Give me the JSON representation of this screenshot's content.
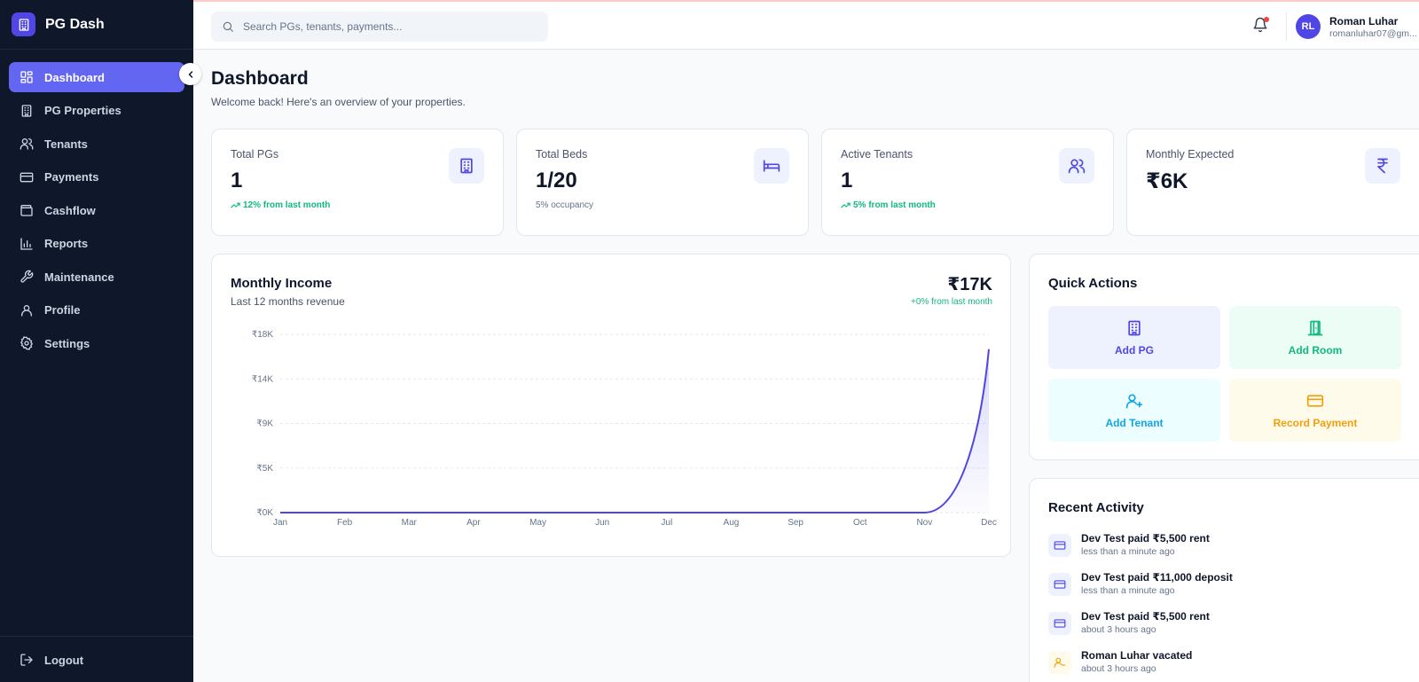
{
  "app": {
    "name": "PG Dash"
  },
  "sidebar": {
    "items": [
      {
        "label": "Dashboard",
        "icon": "dashboard-icon",
        "active": true
      },
      {
        "label": "PG Properties",
        "icon": "building-icon"
      },
      {
        "label": "Tenants",
        "icon": "users-icon"
      },
      {
        "label": "Payments",
        "icon": "credit-card-icon"
      },
      {
        "label": "Cashflow",
        "icon": "wallet-icon"
      },
      {
        "label": "Reports",
        "icon": "bar-chart-icon"
      },
      {
        "label": "Maintenance",
        "icon": "wrench-icon"
      },
      {
        "label": "Profile",
        "icon": "user-icon"
      },
      {
        "label": "Settings",
        "icon": "gear-icon"
      }
    ],
    "logout_label": "Logout"
  },
  "header": {
    "search_placeholder": "Search PGs, tenants, payments...",
    "user": {
      "initials": "RL",
      "name": "Roman Luhar",
      "email": "romanluhar07@gm..."
    }
  },
  "page": {
    "title": "Dashboard",
    "subtitle": "Welcome back! Here's an overview of your properties."
  },
  "stats": [
    {
      "label": "Total PGs",
      "value": "1",
      "note": "12% from last month",
      "note_trend": "up",
      "icon": "building-icon"
    },
    {
      "label": "Total Beds",
      "value": "1/20",
      "note": "5% occupancy",
      "note_trend": "neutral",
      "icon": "bed-icon"
    },
    {
      "label": "Active Tenants",
      "value": "1",
      "note": "5% from last month",
      "note_trend": "up",
      "icon": "users-icon"
    },
    {
      "label": "Monthly Expected",
      "value": "₹6K",
      "note": "",
      "note_trend": "none",
      "icon": "rupee-icon"
    }
  ],
  "income": {
    "title": "Monthly Income",
    "subtitle": "Last 12 months revenue",
    "total": "₹17K",
    "change": "+0% from last month"
  },
  "chart_data": {
    "type": "area",
    "x": [
      "Jan",
      "Feb",
      "Mar",
      "Apr",
      "May",
      "Jun",
      "Jul",
      "Aug",
      "Sep",
      "Oct",
      "Nov",
      "Dec"
    ],
    "series": [
      {
        "values": [
          0,
          0,
          0,
          0,
          0,
          0,
          0,
          0,
          0,
          0,
          0,
          16500
        ]
      }
    ],
    "y_ticks": [
      "₹0K",
      "₹5K",
      "₹9K",
      "₹14K",
      "₹18K"
    ],
    "y_tick_values": [
      0,
      4500,
      9000,
      13500,
      18000
    ],
    "ylim": [
      0,
      18000
    ],
    "grid": true,
    "line_color": "#4f46e5"
  },
  "quick_actions": {
    "title": "Quick Actions",
    "buttons": [
      {
        "label": "Add PG",
        "icon": "building-icon",
        "bg": "#eef2ff",
        "color": "#4f46e5"
      },
      {
        "label": "Add Room",
        "icon": "door-icon",
        "bg": "#ecfdf5",
        "color": "#10b981"
      },
      {
        "label": "Add Tenant",
        "icon": "user-plus-icon",
        "bg": "#ecfeff",
        "color": "#0ea5e9"
      },
      {
        "label": "Record Payment",
        "icon": "credit-card-icon",
        "bg": "#fffbeb",
        "color": "#f59e0b"
      }
    ]
  },
  "recent_activity": {
    "title": "Recent Activity",
    "items": [
      {
        "text": "Dev Test paid ₹5,500 rent",
        "time": "less than a minute ago",
        "icon": "credit-card-icon"
      },
      {
        "text": "Dev Test paid ₹11,000 deposit",
        "time": "less than a minute ago",
        "icon": "credit-card-icon"
      },
      {
        "text": "Dev Test paid ₹5,500 rent",
        "time": "about 3 hours ago",
        "icon": "credit-card-icon"
      },
      {
        "text": "Roman Luhar vacated",
        "time": "about 3 hours ago",
        "icon": "user-minus-icon"
      }
    ]
  },
  "colors": {
    "sidebar_bg": "#0f172a",
    "accent": "#6366f1",
    "success": "#10b981",
    "danger": "#ef4444"
  }
}
